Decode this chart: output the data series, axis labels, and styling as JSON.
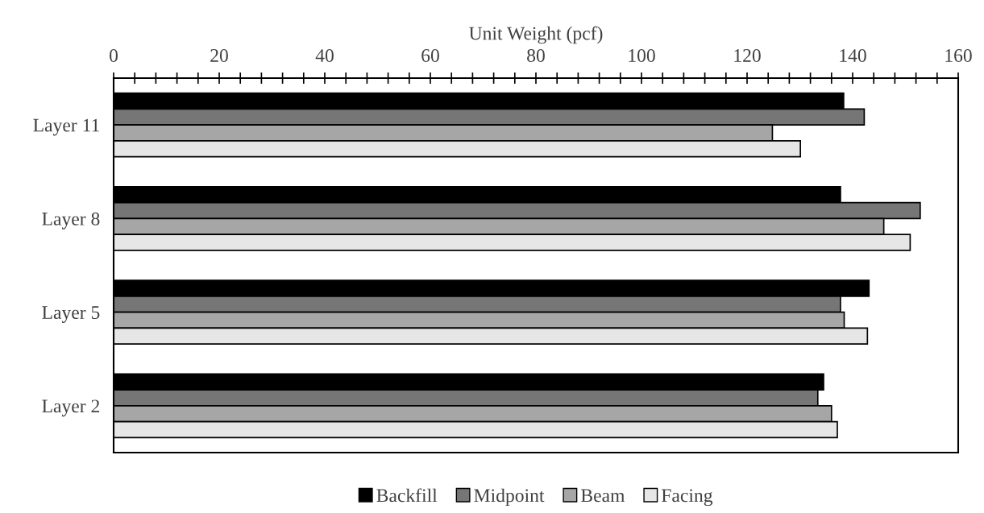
{
  "chart_data": {
    "type": "bar",
    "orientation": "horizontal",
    "xlabel": "Unit Weight (pcf)",
    "categories": [
      "Layer 11",
      "Layer 8",
      "Layer 5",
      "Layer 2"
    ],
    "series": [
      {
        "name": "Backfill",
        "color": "#000000",
        "values": [
          138.3,
          137.7,
          143.1,
          134.5
        ]
      },
      {
        "name": "Midpoint",
        "color": "#767676",
        "values": [
          142.2,
          152.8,
          137.7,
          133.4
        ]
      },
      {
        "name": "Beam",
        "color": "#a6a6a6",
        "values": [
          124.8,
          145.9,
          138.4,
          136.0
        ]
      },
      {
        "name": "Facing",
        "color": "#e6e6e6",
        "values": [
          130.1,
          150.9,
          142.8,
          137.1
        ]
      }
    ],
    "xlim": [
      0,
      160
    ],
    "xticks": [
      0,
      {
        "value": 4,
        "label": null
      },
      {
        "value": 8,
        "label": null
      },
      {
        "value": 12,
        "label": null
      },
      {
        "value": 16,
        "label": null
      },
      20,
      {
        "value": 24,
        "label": null
      },
      {
        "value": 28,
        "label": null
      },
      {
        "value": 32,
        "label": null
      },
      {
        "value": 36,
        "label": null
      },
      40,
      {
        "value": 44,
        "label": null
      },
      {
        "value": 48,
        "label": null
      },
      {
        "value": 52,
        "label": null
      },
      {
        "value": 56,
        "label": null
      },
      60,
      {
        "value": 64,
        "label": null
      },
      {
        "value": 68,
        "label": null
      },
      {
        "value": 72,
        "label": null
      },
      {
        "value": 76,
        "label": null
      },
      80,
      {
        "value": 84,
        "label": null
      },
      {
        "value": 88,
        "label": null
      },
      {
        "value": 92,
        "label": null
      },
      {
        "value": 96,
        "label": null
      },
      100,
      {
        "value": 104,
        "label": null
      },
      {
        "value": 108,
        "label": null
      },
      {
        "value": 112,
        "label": null
      },
      {
        "value": 116,
        "label": null
      },
      120,
      {
        "value": 124,
        "label": null
      },
      {
        "value": 128,
        "label": null
      },
      {
        "value": 132,
        "label": null
      },
      {
        "value": 136,
        "label": null
      },
      140,
      {
        "value": 144,
        "label": null
      },
      {
        "value": 148,
        "label": null
      },
      {
        "value": 152,
        "label": null
      },
      {
        "value": 156,
        "label": null
      },
      160
    ],
    "grid": false,
    "legend": "bottom"
  }
}
